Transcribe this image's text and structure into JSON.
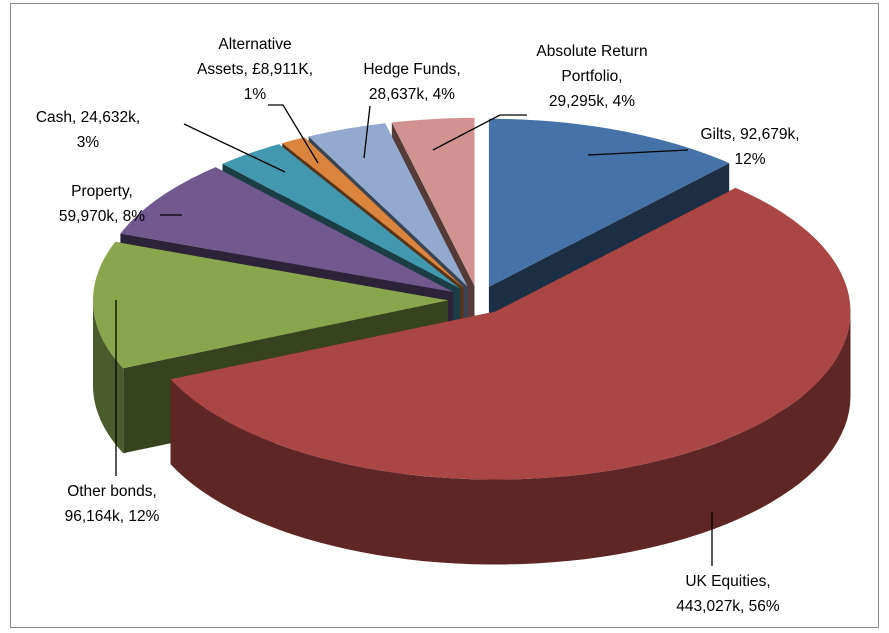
{
  "chart_data": {
    "type": "pie3d",
    "categories": [
      "Gilts",
      "UK Equities",
      "Other bonds",
      "Property",
      "Cash",
      "Alternative Assets",
      "Hedge Funds",
      "Absolute Return Portfolio"
    ],
    "values": [
      92679,
      443027,
      96164,
      59970,
      24632,
      8911,
      28637,
      29295
    ],
    "value_labels": [
      [
        "Gilts, 92,679k,",
        "12%"
      ],
      [
        "UK Equities,",
        "443,027k, 56%"
      ],
      [
        "Other bonds,",
        "96,164k, 12%"
      ],
      [
        "Property,",
        "59,970k, 8%"
      ],
      [
        "Cash, 24,632k,",
        "3%"
      ],
      [
        "Alternative",
        "Assets, £8,911K,",
        "1%"
      ],
      [
        "Hedge Funds,",
        "28,637k, 4%"
      ],
      [
        "Absolute Return",
        "Portfolio,",
        "29,295k, 4%"
      ]
    ],
    "colors": [
      "#4572a7",
      "#aa4643",
      "#89a54e",
      "#71588f",
      "#4198af",
      "#db843d",
      "#93a9cf",
      "#d19392"
    ]
  }
}
